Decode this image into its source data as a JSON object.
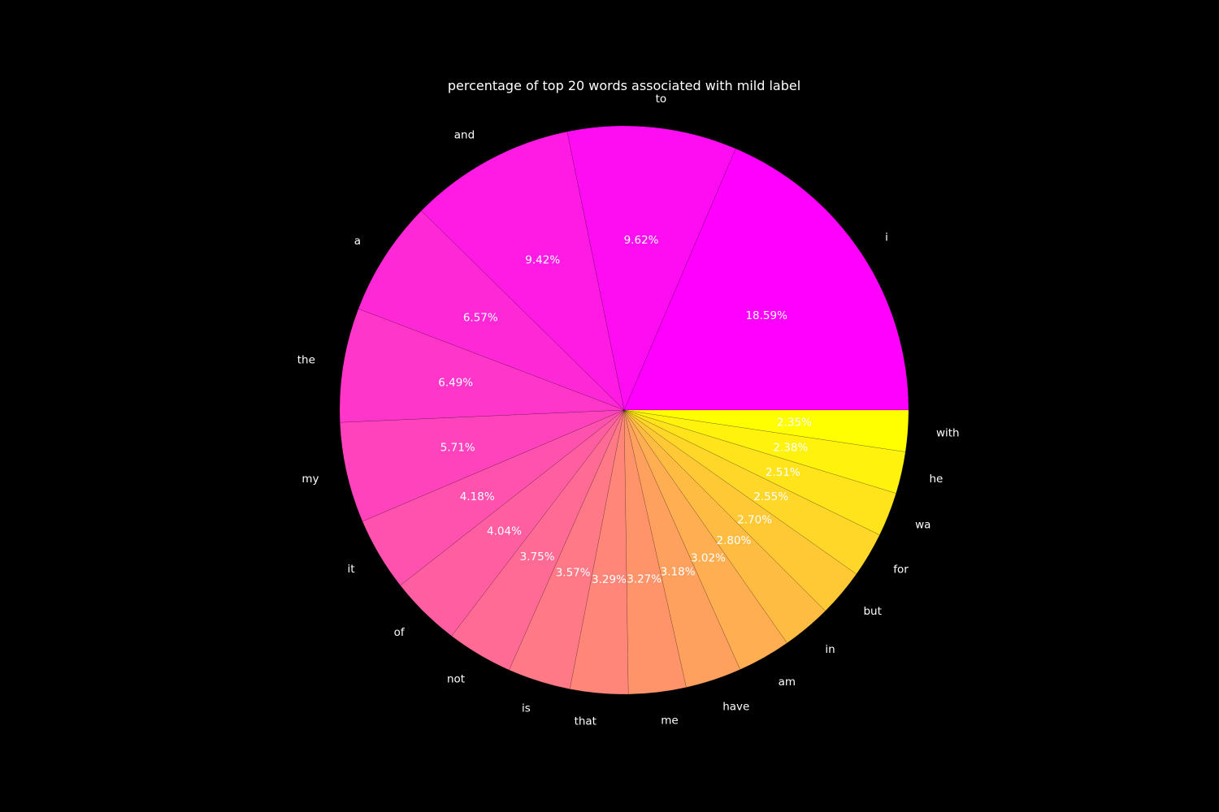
{
  "chart_data": {
    "type": "pie",
    "title": "percentage of top 20 words associated with mild label",
    "categories": [
      "i",
      "to",
      "and",
      "a",
      "the",
      "my",
      "it",
      "of",
      "not",
      "is",
      "that",
      "me",
      "have",
      "am",
      "in",
      "but",
      "for",
      "wa",
      "he",
      "with"
    ],
    "values": [
      18.59,
      9.62,
      9.42,
      6.57,
      6.49,
      5.71,
      4.18,
      4.04,
      3.75,
      3.57,
      3.29,
      3.27,
      3.18,
      3.02,
      2.8,
      2.7,
      2.55,
      2.51,
      2.38,
      2.35
    ],
    "value_labels": [
      "18.59%",
      "9.62%",
      "9.42%",
      "6.57%",
      "6.49%",
      "5.71%",
      "4.18%",
      "4.04%",
      "3.75%",
      "3.57%",
      "3.29%",
      "3.27%",
      "3.18%",
      "3.02%",
      "2.80%",
      "2.70%",
      "2.55%",
      "2.51%",
      "2.38%",
      "2.35%"
    ],
    "start_angle_deg": 0,
    "direction": "counterclockwise",
    "colormap": "spring",
    "colors": {
      "start": "#ff00ff",
      "end": "#ffff00",
      "background": "#000000",
      "text": "#ffffff"
    },
    "legend": "none"
  }
}
